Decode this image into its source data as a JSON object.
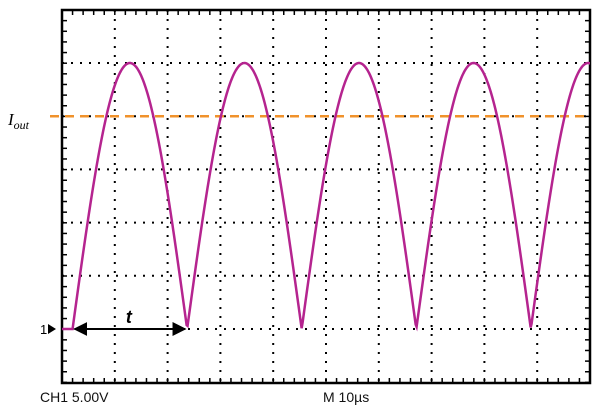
{
  "chart_data": {
    "type": "line",
    "title": "",
    "xlabel": "",
    "ylabel": "",
    "grid": true,
    "x_divisions": 10,
    "y_divisions": 6,
    "xlim": [
      0,
      10
    ],
    "ylim": [
      -0.5,
      5.5
    ],
    "series": [
      {
        "name": "",
        "color": "#b5248f",
        "waveform": "full-wave-rectified-sine",
        "flat_start": 0.2,
        "start": 0.2,
        "period": 2.17,
        "amplitude": 5,
        "baseline": 0,
        "x_end": 10
      }
    ],
    "reference_line": {
      "label": "I",
      "subscript": "out",
      "value": 4,
      "color": "#f0922b"
    },
    "ground_marker": {
      "label": "1",
      "value": 0
    },
    "annotation": {
      "label": "t",
      "x_from": 0.2,
      "x_to": 2.37,
      "y": 0
    },
    "readouts": {
      "channel": "CH1  5.00V",
      "timebase": "M  10µs"
    }
  }
}
